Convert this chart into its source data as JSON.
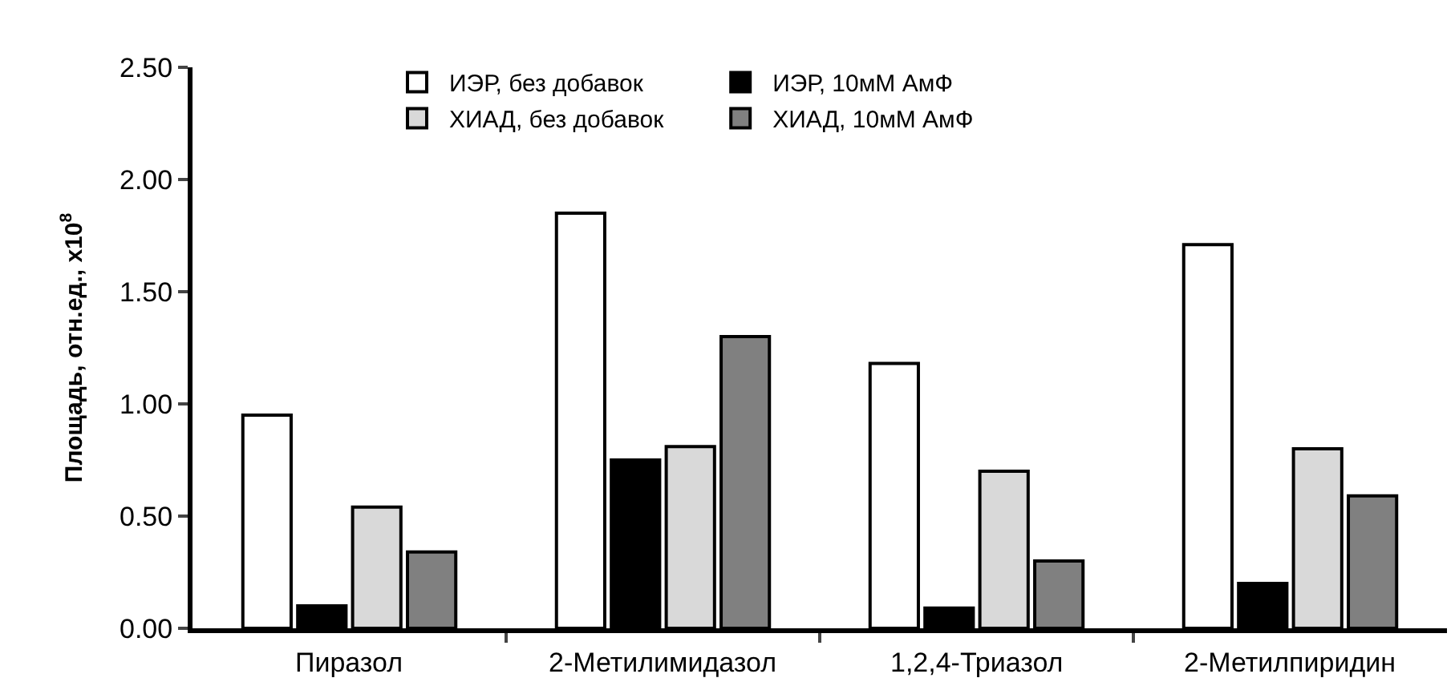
{
  "chart_data": {
    "type": "bar",
    "ylabel": "Площадь, отн.ед., x10$^{8}$",
    "categories": [
      "Пиразол",
      "2-Метилимидазол",
      "1,2,4-Триазол",
      "2-Метилпиридин"
    ],
    "series": [
      {
        "name": "ИЭР, без добавок",
        "color": "#ffffff",
        "values": [
          0.95,
          1.85,
          1.18,
          1.71
        ]
      },
      {
        "name": "ИЭР, 10мМ АмФ",
        "color": "#000000",
        "values": [
          0.1,
          0.75,
          0.09,
          0.2
        ]
      },
      {
        "name": "ХИАД, без добавок",
        "color": "#d9d9d9",
        "values": [
          0.54,
          0.81,
          0.7,
          0.8
        ]
      },
      {
        "name": "ХИАД, 10мМ АмФ",
        "color": "#808080",
        "values": [
          0.34,
          1.3,
          0.3,
          0.59
        ]
      }
    ],
    "ylim": [
      0,
      2.5
    ],
    "yticks": [
      {
        "value": 0,
        "label": "0.00"
      },
      {
        "value": 0.5,
        "label": "0.50"
      },
      {
        "value": 1,
        "label": "1.00"
      },
      {
        "value": 1.5,
        "label": "1.50"
      },
      {
        "value": 2,
        "label": "2.00"
      },
      {
        "value": 2.5,
        "label": "2.50"
      }
    ],
    "grid": false,
    "legend": "top"
  }
}
